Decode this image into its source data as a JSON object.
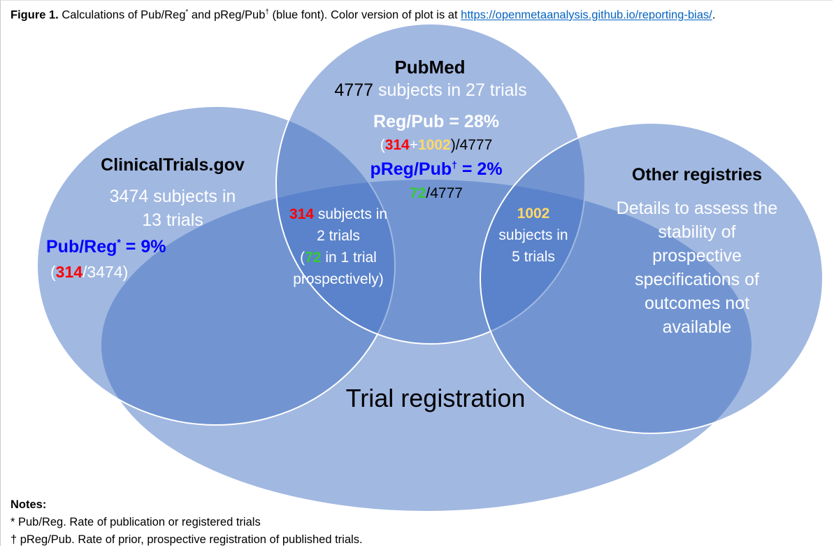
{
  "caption": {
    "figure_label": "Figure 1.",
    "text_before_sup1": " Calculations of Pub/Reg",
    "sup1": "*",
    "text_mid": " and pReg/Pub",
    "sup2": "†",
    "text_after": " (blue font). Color version of plot is at ",
    "link_text": "https://openmetaanalysis.github.io/reporting-bias/",
    "text_end": "."
  },
  "pubmed": {
    "title": "PubMed",
    "count": "4777",
    "count_suffix": " subjects in 27 trials",
    "reg_pub": "Reg/Pub = 28%",
    "formula_open": "(",
    "formula_a": "314",
    "formula_plus": "+",
    "formula_b": "1002",
    "formula_close": ")/4777",
    "preg_pub_prefix": "pReg/Pub",
    "preg_pub_sup": "†",
    "preg_pub_suffix": " = 2%",
    "preg_num": "72",
    "preg_den": "/4777"
  },
  "clinicaltrials": {
    "title": "ClinicalTrials.gov",
    "subjects_line1": "3474 subjects in",
    "subjects_line2": "13 trials",
    "pub_reg_prefix": "Pub/Reg",
    "pub_reg_sup": "*",
    "pub_reg_suffix": " = 9%",
    "formula_open": "(",
    "formula_num": "314",
    "formula_rest": "/3474)"
  },
  "overlap_ct_pubmed": {
    "count": "314",
    "line1_suffix": " subjects in",
    "line2": "2 trials",
    "line3_open": "(",
    "line3_num": "72",
    "line3_suffix": " in 1 trial",
    "line4": "prospectively)"
  },
  "overlap_other_pubmed": {
    "count": "1002",
    "line2": "subjects in",
    "line3": "5 trials"
  },
  "other_registries": {
    "title": "Other registries",
    "line1": "Details to assess the",
    "line2": "stability of",
    "line3": "prospective",
    "line4": "specifications of",
    "line5": "outcomes not",
    "line6": "available"
  },
  "trial_registration": {
    "label": "Trial registration"
  },
  "notes": {
    "title": "Notes:",
    "note1": "* Pub/Reg. Rate of publication or registered trials",
    "note2": "† pReg/Pub. Rate of prior, prospective registration of published trials."
  },
  "colors": {
    "circle_fill": "#4472c4",
    "circle_stroke": "#ffffff",
    "highlight_red": "#ff0000",
    "highlight_yellow": "#ffd966",
    "highlight_green": "#33cc33",
    "ratio_blue": "#0000ff"
  }
}
